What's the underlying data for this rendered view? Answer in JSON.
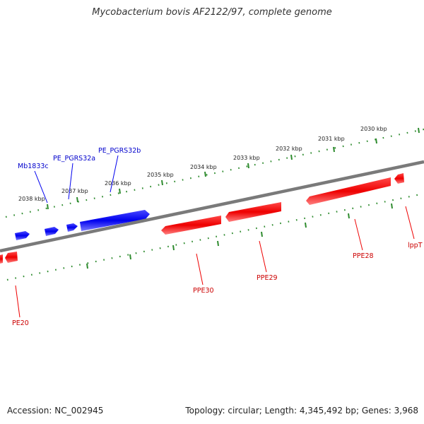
{
  "title": "Mycobacterium bovis AF2122/97, complete genome",
  "footer": {
    "accession": "Accession: NC_002945",
    "summary": "Topology: circular; Length: 4,345,492 bp; Genes: 3,968"
  },
  "colors": {
    "forward_gene": "#0000ee",
    "reverse_gene": "#ee0000",
    "backbone": "#808080",
    "ticks": "#2e8b2e"
  },
  "kbp_labels": [
    "2038 kbp",
    "2037 kbp",
    "2036 kbp",
    "2035 kbp",
    "2034 kbp",
    "2033 kbp",
    "2032 kbp",
    "2031 kbp",
    "2030 kbp"
  ],
  "forward_gene_labels": [
    "Mb1833c",
    "PE_PGRS32a",
    "PE_PGRS32b"
  ],
  "reverse_gene_labels": [
    "PE20",
    "PPE30",
    "PPE29",
    "PPE28",
    "lppT"
  ]
}
